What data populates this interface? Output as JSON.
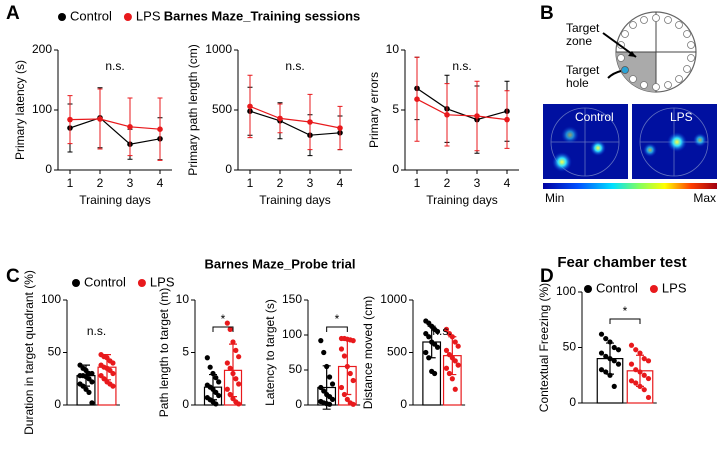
{
  "panels": [
    {
      "label": "A",
      "title": "Barnes Maze_Training sessions",
      "legend": [
        {
          "name": "Control",
          "color": "#000000"
        },
        {
          "name": "LPS",
          "color": "#e8191c"
        }
      ]
    },
    {
      "label": "B",
      "target_zone": "Target zone",
      "target_hole": "Target hole",
      "heatmaps": [
        "Control",
        "LPS"
      ],
      "colorbar": [
        "Min",
        "Max"
      ]
    },
    {
      "label": "C",
      "title": "Barnes Maze_Probe trial",
      "legend": [
        {
          "name": "Control",
          "color": "#000000"
        },
        {
          "name": "LPS",
          "color": "#e8191c"
        }
      ]
    },
    {
      "label": "D",
      "title": "Fear chamber test",
      "legend": [
        {
          "name": "Control",
          "color": "#000000"
        },
        {
          "name": "LPS",
          "color": "#e8191c"
        }
      ]
    }
  ],
  "chart_data": [
    {
      "type": "line",
      "ylabel": "Primary latency (s)",
      "xlabel": "Training days",
      "x": [
        1,
        2,
        3,
        4
      ],
      "xlim": [
        0.6,
        4.4
      ],
      "xticks": [
        1,
        2,
        3,
        4
      ],
      "ylim": [
        0,
        200
      ],
      "yticks": [
        0,
        100,
        200
      ],
      "annotation": "n.s.",
      "series": [
        {
          "color": "#000000",
          "values": [
            70,
            87,
            43,
            52
          ],
          "errors": [
            40,
            50,
            25,
            35
          ]
        },
        {
          "color": "#e8191c",
          "values": [
            84,
            85,
            72,
            68
          ],
          "errors": [
            40,
            50,
            48,
            52
          ]
        }
      ]
    },
    {
      "type": "line",
      "ylabel": "Primary path length (cm)",
      "xlabel": "Training days",
      "x": [
        1,
        2,
        3,
        4
      ],
      "xlim": [
        0.6,
        4.4
      ],
      "xticks": [
        1,
        2,
        3,
        4
      ],
      "ylim": [
        0,
        1000
      ],
      "yticks": [
        0,
        500,
        1000
      ],
      "annotation": "n.s.",
      "series": [
        {
          "color": "#000000",
          "values": [
            490,
            410,
            290,
            310
          ],
          "errors": [
            200,
            150,
            170,
            140
          ]
        },
        {
          "color": "#e8191c",
          "values": [
            530,
            430,
            400,
            350
          ],
          "errors": [
            260,
            120,
            230,
            180
          ]
        }
      ]
    },
    {
      "type": "line",
      "ylabel": "Primary errors",
      "xlabel": "Training days",
      "x": [
        1,
        2,
        3,
        4
      ],
      "xlim": [
        0.6,
        4.4
      ],
      "xticks": [
        1,
        2,
        3,
        4
      ],
      "ylim": [
        0,
        10
      ],
      "yticks": [
        0,
        5,
        10
      ],
      "annotation": "n.s.",
      "series": [
        {
          "color": "#000000",
          "values": [
            6.8,
            5.1,
            4.2,
            4.9
          ],
          "errors": [
            2.6,
            2.8,
            2.8,
            2.5
          ]
        },
        {
          "color": "#e8191c",
          "values": [
            5.9,
            4.6,
            4.5,
            4.2
          ],
          "errors": [
            3.5,
            2.6,
            2.9,
            2.4
          ]
        }
      ]
    },
    {
      "type": "bar",
      "ylabel": "Duration in target quadrant (%)",
      "ylim": [
        0,
        100
      ],
      "yticks": [
        0,
        50,
        100
      ],
      "annotation": "n.s.",
      "bracket": false,
      "series": [
        {
          "color": "#000000",
          "values": [
            28
          ],
          "errors": [
            10
          ],
          "points": [
            38,
            35,
            33,
            30,
            30,
            28,
            28,
            27,
            25,
            22,
            20,
            18,
            15,
            12,
            2
          ]
        },
        {
          "color": "#e8191c",
          "values": [
            36
          ],
          "errors": [
            12
          ],
          "points": [
            48,
            46,
            45,
            42,
            40,
            38,
            36,
            35,
            33,
            30,
            28,
            25,
            22,
            20,
            18
          ]
        }
      ]
    },
    {
      "type": "bar",
      "ylabel": "Path length to target (m)",
      "ylim": [
        0,
        10
      ],
      "yticks": [
        0,
        5,
        10
      ],
      "annotation": "*",
      "bracket": true,
      "series": [
        {
          "color": "#000000",
          "values": [
            1.7
          ],
          "errors": [
            1.2
          ],
          "points": [
            4.5,
            3.6,
            3.0,
            2.6,
            2.2,
            1.9,
            1.7,
            1.5,
            1.2,
            0.9,
            0.7,
            0.5,
            0.3,
            0.1
          ]
        },
        {
          "color": "#e8191c",
          "values": [
            3.3
          ],
          "errors": [
            2.5
          ],
          "points": [
            7.8,
            7.2,
            6.0,
            5.2,
            4.6,
            4.0,
            3.5,
            3.0,
            2.5,
            2.0,
            1.5,
            1.0,
            0.6,
            0.3,
            0.1
          ]
        }
      ]
    },
    {
      "type": "bar",
      "ylabel": "Latency to target (s)",
      "ylim": [
        0,
        150
      ],
      "yticks": [
        0,
        50,
        100,
        150
      ],
      "annotation": "*",
      "bracket": true,
      "series": [
        {
          "color": "#000000",
          "values": [
            25
          ],
          "errors": [
            31
          ],
          "points": [
            92,
            75,
            55,
            40,
            30,
            25,
            20,
            15,
            12,
            8,
            5,
            3,
            2,
            1
          ]
        },
        {
          "color": "#e8191c",
          "values": [
            55
          ],
          "errors": [
            40
          ],
          "points": [
            95,
            95,
            94,
            93,
            92,
            80,
            70,
            55,
            45,
            35,
            25,
            15,
            8,
            3,
            1
          ]
        }
      ]
    },
    {
      "type": "bar",
      "ylabel": "Distance moved (cm)",
      "ylim": [
        0,
        1000
      ],
      "yticks": [
        0,
        500,
        1000
      ],
      "annotation": "n.s.",
      "bracket": false,
      "series": [
        {
          "color": "#000000",
          "values": [
            600
          ],
          "errors": [
            150
          ],
          "points": [
            800,
            780,
            750,
            720,
            700,
            680,
            650,
            600,
            580,
            550,
            500,
            450,
            320,
            300
          ]
        },
        {
          "color": "#e8191c",
          "values": [
            470
          ],
          "errors": [
            180
          ],
          "points": [
            720,
            680,
            650,
            600,
            560,
            520,
            480,
            450,
            420,
            380,
            350,
            300,
            250,
            150
          ]
        }
      ]
    },
    {
      "type": "bar",
      "ylabel": "Contextual Freezing (%)",
      "ylim": [
        0,
        100
      ],
      "yticks": [
        0,
        50,
        100
      ],
      "annotation": "*",
      "bracket": true,
      "series": [
        {
          "color": "#000000",
          "values": [
            40
          ],
          "errors": [
            14
          ],
          "points": [
            62,
            58,
            55,
            50,
            48,
            45,
            42,
            40,
            38,
            35,
            30,
            28,
            25,
            15
          ]
        },
        {
          "color": "#e8191c",
          "values": [
            29
          ],
          "errors": [
            14
          ],
          "points": [
            52,
            48,
            45,
            40,
            38,
            35,
            30,
            28,
            25,
            22,
            20,
            18,
            15,
            12,
            5
          ]
        }
      ]
    }
  ]
}
